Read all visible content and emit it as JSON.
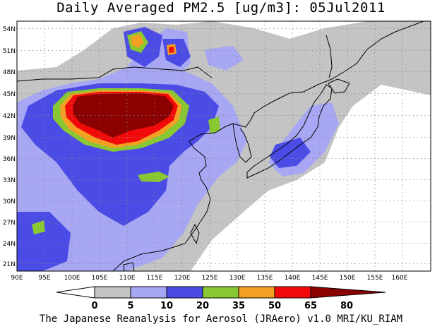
{
  "title": "Daily Averaged PM2.5 [ug/m3]: 05Jul2011",
  "credit": "The Japanese Reanalysis for Aerosol (JRAero) v1.0 MRI/KU_RIAM",
  "lon_ticks": [
    "90E",
    "95E",
    "100E",
    "105E",
    "110E",
    "115E",
    "120E",
    "125E",
    "130E",
    "135E",
    "140E",
    "145E",
    "150E",
    "155E",
    "160E"
  ],
  "lat_ticks": [
    "21N",
    "24N",
    "27N",
    "30N",
    "33N",
    "36N",
    "39N",
    "42N",
    "45N",
    "48N",
    "51N",
    "54N"
  ],
  "colorbar": {
    "labels": [
      "0",
      "5",
      "10",
      "20",
      "35",
      "50",
      "65",
      "80"
    ],
    "colors": [
      "#ffffff",
      "#c4c4c4",
      "#a7a7f4",
      "#4b4be6",
      "#88c832",
      "#f4a023",
      "#f20a0a",
      "#8b0000"
    ]
  }
}
